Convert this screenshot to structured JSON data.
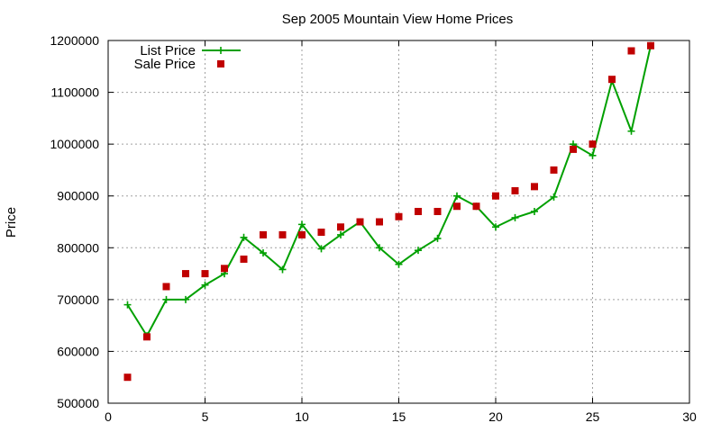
{
  "chart_data": {
    "type": "line",
    "title": "Sep 2005 Mountain View Home Prices",
    "xlabel": "",
    "ylabel": "Price",
    "xlim": [
      0,
      30
    ],
    "ylim": [
      500000,
      1200000
    ],
    "x_ticks": [
      0,
      5,
      10,
      15,
      20,
      25,
      30
    ],
    "y_ticks": [
      500000,
      600000,
      700000,
      800000,
      900000,
      1000000,
      1100000,
      1200000
    ],
    "grid": true,
    "legend_position": "top-left",
    "series": [
      {
        "name": "List Price",
        "style": "line-plus",
        "color": "#00a000",
        "x": [
          1,
          2,
          3,
          4,
          5,
          6,
          7,
          8,
          9,
          10,
          11,
          12,
          13,
          14,
          15,
          16,
          17,
          18,
          19,
          20,
          21,
          22,
          23,
          24,
          25,
          26,
          27,
          28
        ],
        "y": [
          690000,
          630000,
          700000,
          700000,
          728000,
          750000,
          820000,
          790000,
          758000,
          845000,
          798000,
          825000,
          850000,
          800000,
          768000,
          795000,
          818000,
          900000,
          880000,
          840000,
          858000,
          870000,
          898000,
          1000000,
          978000,
          1122000,
          1025000,
          1190000
        ]
      },
      {
        "name": "Sale Price",
        "style": "square-points",
        "color": "#c00000",
        "x": [
          1,
          2,
          3,
          4,
          5,
          6,
          7,
          8,
          9,
          10,
          11,
          12,
          13,
          14,
          15,
          16,
          17,
          18,
          19,
          20,
          21,
          22,
          23,
          24,
          25,
          26,
          27,
          28
        ],
        "y": [
          550000,
          628000,
          725000,
          750000,
          750000,
          760000,
          778000,
          825000,
          825000,
          825000,
          830000,
          840000,
          850000,
          850000,
          860000,
          870000,
          870000,
          880000,
          880000,
          900000,
          910000,
          918000,
          950000,
          990000,
          1000000,
          1125000,
          1180000,
          1190000
        ]
      }
    ]
  }
}
